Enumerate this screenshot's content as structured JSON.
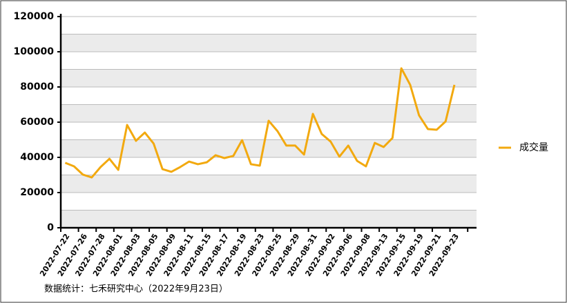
{
  "chart_data": {
    "type": "line",
    "categories": [
      "2022-07-22",
      null,
      "2022-07-26",
      null,
      "2022-07-28",
      null,
      "2022-08-01",
      null,
      "2022-08-03",
      null,
      "2022-08-05",
      null,
      "2022-08-09",
      null,
      "2022-08-11",
      null,
      "2022-08-15",
      null,
      "2022-08-17",
      null,
      "2022-08-19",
      null,
      "2022-08-23",
      null,
      "2022-08-25",
      null,
      "2022-08-29",
      null,
      "2022-08-31",
      null,
      "2022-09-02",
      null,
      "2022-09-06",
      null,
      "2022-09-08",
      null,
      "2022-09-13",
      null,
      "2022-09-15",
      null,
      "2022-09-19",
      null,
      "2022-09-21",
      null,
      "2022-09-23",
      null,
      null
    ],
    "series": [
      {
        "name": "成交量",
        "color": "#f2a90f",
        "values": [
          36900,
          34900,
          30200,
          28600,
          34500,
          39200,
          32900,
          58400,
          49400,
          54100,
          47800,
          33300,
          31800,
          34500,
          37600,
          36100,
          37200,
          41200,
          39600,
          40800,
          49800,
          36100,
          35300,
          60800,
          54900,
          46700,
          46700,
          41600,
          64700,
          53300,
          49000,
          40400,
          46700,
          38000,
          34900,
          48200,
          45900,
          51000,
          90600,
          81200,
          63900,
          56100,
          55700,
          60400,
          81200,
          null,
          null
        ]
      }
    ],
    "ylim": [
      0,
      120000
    ],
    "yticks": [
      0,
      20000,
      40000,
      60000,
      80000,
      100000,
      120000
    ],
    "grid": true,
    "legend": "right",
    "source": "数据统计：七禾研究中心（2022年9月23日）"
  }
}
